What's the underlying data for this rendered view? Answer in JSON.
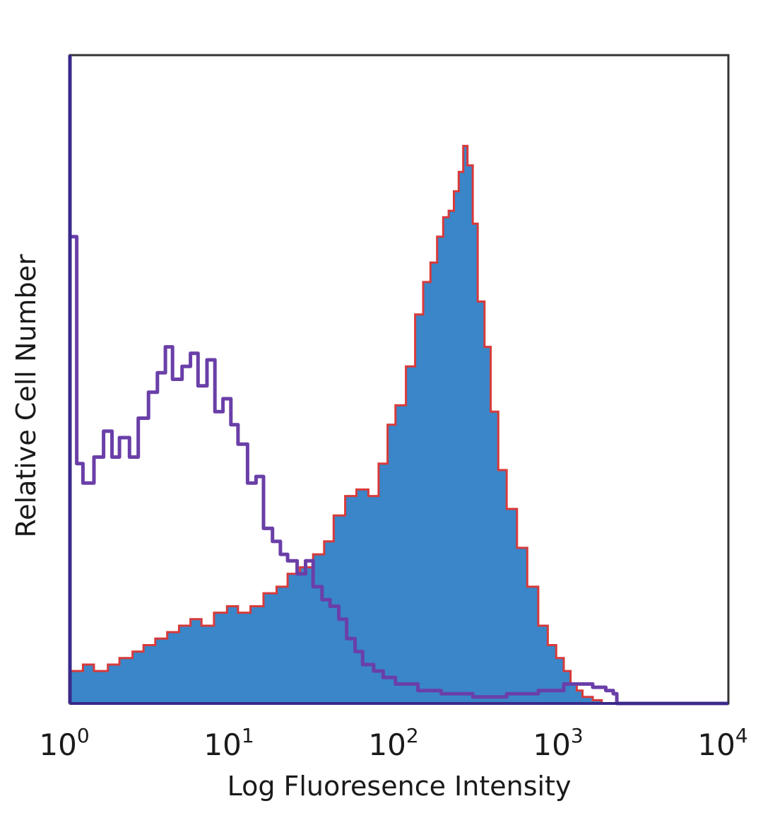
{
  "colors": {
    "isotype_outline": "#6a3fa8",
    "stained_fill": "#3a86c8",
    "stained_outline": "#d83a3a",
    "frame": "#333333",
    "axis_left": "#3a2a8a"
  },
  "chart_data": {
    "type": "area",
    "xlabel": "Log Fluoresence Intensity",
    "ylabel": "Relative Cell Number",
    "x_scale": "log",
    "xlim": [
      1,
      10000
    ],
    "ylim": [
      0,
      100
    ],
    "grid": false,
    "x_ticks": [
      {
        "base": "10",
        "exp": "0",
        "value": 1
      },
      {
        "base": "10",
        "exp": "1",
        "value": 10
      },
      {
        "base": "10",
        "exp": "2",
        "value": 100
      },
      {
        "base": "10",
        "exp": "3",
        "value": 1000
      },
      {
        "base": "10",
        "exp": "4",
        "value": 10000
      }
    ],
    "series": [
      {
        "style": "outline",
        "x": [
          1.0,
          1.1,
          1.2,
          1.4,
          1.6,
          1.8,
          2.0,
          2.3,
          2.6,
          3.0,
          3.4,
          3.8,
          4.2,
          4.8,
          5.4,
          6.0,
          6.8,
          7.6,
          8.5,
          9.5,
          10.5,
          12,
          13.5,
          15,
          17,
          19,
          21,
          24,
          27,
          30,
          34,
          38,
          43,
          48,
          54,
          60,
          70,
          80,
          95,
          110,
          130,
          150,
          180,
          220,
          280,
          350,
          450,
          550,
          700,
          850,
          1000,
          1200,
          1500,
          1800,
          2000,
          2100,
          3000,
          5000,
          10000
        ],
        "values": [
          72,
          37,
          34,
          38,
          42,
          38,
          41,
          38,
          44,
          48,
          51,
          55,
          50,
          52,
          54,
          49,
          53,
          45,
          47,
          43,
          40,
          34,
          35,
          27,
          25,
          23,
          22,
          20,
          22,
          18,
          16,
          15,
          13,
          10,
          8,
          6,
          5,
          4,
          3,
          3,
          2,
          2,
          1.5,
          1.5,
          1,
          1,
          1.5,
          1.5,
          2,
          2,
          3,
          3,
          2.5,
          2,
          1.5,
          0,
          0,
          0,
          0
        ]
      },
      {
        "style": "filled",
        "x": [
          1.0,
          1.2,
          1.4,
          1.7,
          2.0,
          2.4,
          2.8,
          3.3,
          3.9,
          4.6,
          5.4,
          6.3,
          7.5,
          9.0,
          10.5,
          12.5,
          15,
          18,
          21,
          25,
          30,
          35,
          40,
          47,
          55,
          65,
          75,
          85,
          95,
          110,
          125,
          140,
          155,
          170,
          185,
          200,
          215,
          230,
          245,
          260,
          280,
          300,
          330,
          360,
          400,
          450,
          520,
          600,
          700,
          800,
          900,
          1000,
          1100,
          1200,
          1300,
          1500,
          1700,
          2000,
          2100,
          10000
        ],
        "values": [
          5,
          6,
          5,
          6,
          7,
          8,
          9,
          10,
          11,
          12,
          13,
          12,
          14,
          15,
          14,
          15,
          17,
          18,
          20,
          21,
          23,
          25,
          29,
          32,
          33,
          32,
          37,
          43,
          46,
          52,
          60,
          65,
          68,
          72,
          75,
          76,
          79,
          82,
          86,
          83,
          74,
          62,
          55,
          45,
          36,
          30,
          24,
          18,
          12,
          9,
          7,
          5,
          3,
          2,
          1,
          0.5,
          0,
          0,
          0,
          0
        ]
      }
    ]
  }
}
